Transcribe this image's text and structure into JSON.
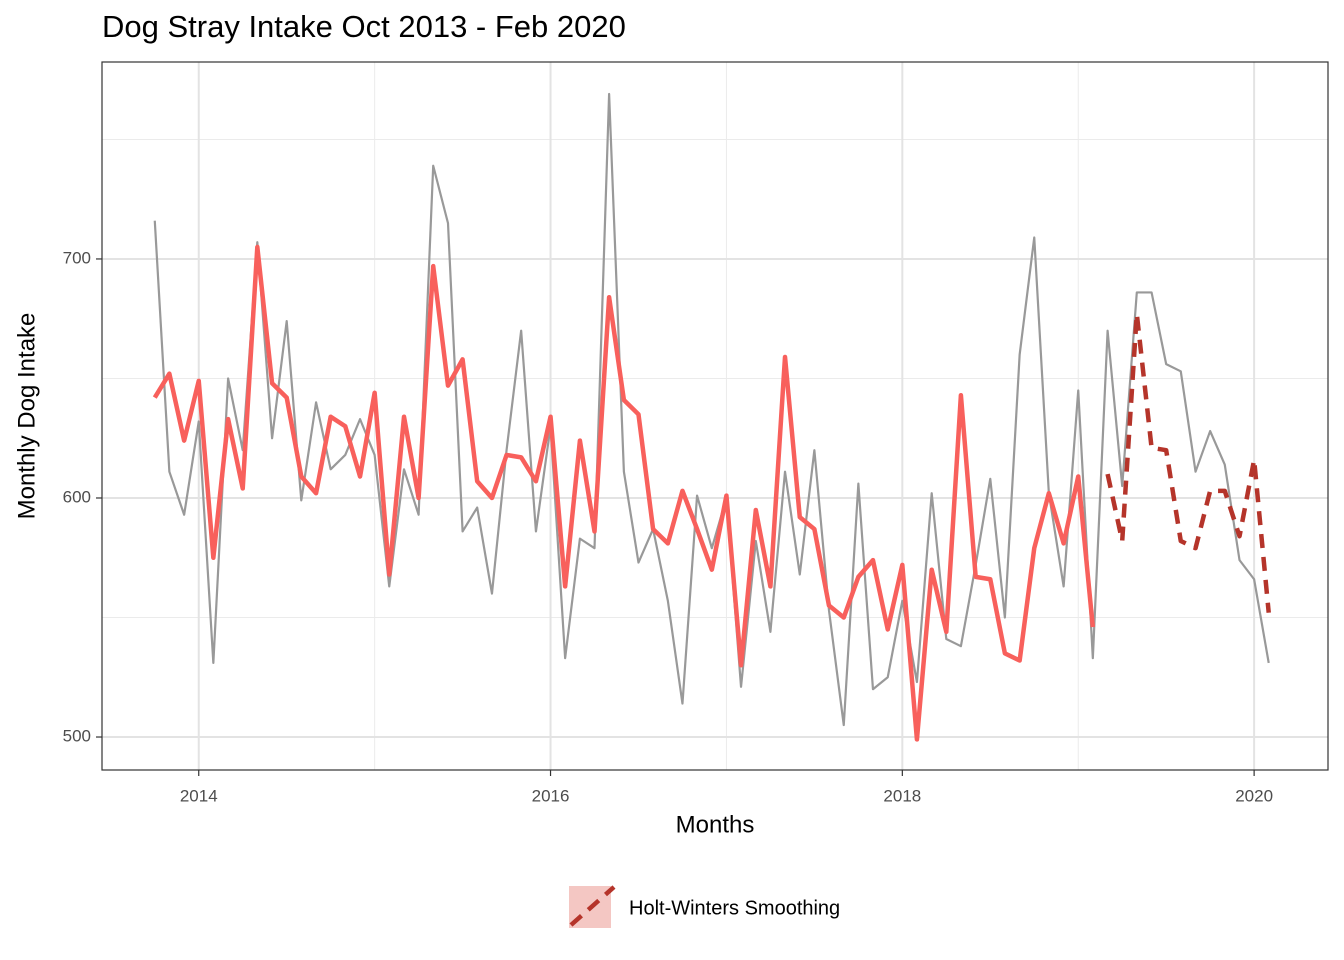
{
  "chart_data": {
    "type": "line",
    "title": "Dog Stray Intake Oct 2013 - Feb 2020",
    "x_label": "Months",
    "y_label": "Monthly Dog Intake",
    "x": [
      2013.75,
      2013.833,
      2013.917,
      2014,
      2014.083,
      2014.167,
      2014.25,
      2014.333,
      2014.417,
      2014.5,
      2014.583,
      2014.667,
      2014.75,
      2014.833,
      2014.917,
      2015,
      2015.083,
      2015.167,
      2015.25,
      2015.333,
      2015.417,
      2015.5,
      2015.583,
      2015.667,
      2015.75,
      2015.833,
      2015.917,
      2016,
      2016.083,
      2016.167,
      2016.25,
      2016.333,
      2016.417,
      2016.5,
      2016.583,
      2016.667,
      2016.75,
      2016.833,
      2016.917,
      2017,
      2017.083,
      2017.167,
      2017.25,
      2017.333,
      2017.417,
      2017.5,
      2017.583,
      2017.667,
      2017.75,
      2017.833,
      2017.917,
      2018,
      2018.083,
      2018.167,
      2018.25,
      2018.333,
      2018.417,
      2018.5,
      2018.583,
      2018.667,
      2018.75,
      2018.833,
      2018.917,
      2019,
      2019.083,
      2019.167,
      2019.25,
      2019.333,
      2019.417,
      2019.5,
      2019.583,
      2019.667,
      2019.75,
      2019.833,
      2019.917,
      2020,
      2020.083
    ],
    "series": [
      {
        "color": "#999999",
        "width": 2.2,
        "dash": "none",
        "values": [
          716,
          611,
          593,
          632,
          531,
          650,
          620,
          707,
          625,
          674,
          599,
          640,
          612,
          618,
          633,
          618,
          563,
          612,
          593,
          739,
          715,
          586,
          596,
          560,
          620,
          670,
          586,
          630,
          533,
          583,
          579,
          769,
          611,
          573,
          587,
          557,
          514,
          601,
          579,
          600,
          521,
          582,
          544,
          611,
          568,
          620,
          553,
          505,
          606,
          520,
          525,
          557,
          523,
          602,
          541,
          538,
          572,
          608,
          550,
          660,
          709,
          602,
          563,
          645,
          533,
          670,
          605,
          686,
          686,
          656,
          653,
          611,
          628,
          614,
          574,
          566,
          531
        ]
      },
      {
        "color": "#f8605c",
        "width": 4.5,
        "dash": "none",
        "values": [
          642,
          652,
          624,
          649,
          575,
          633,
          604,
          705,
          648,
          642,
          609,
          602,
          634,
          630,
          609,
          644,
          568,
          634,
          600,
          697,
          647,
          658,
          607,
          600,
          618,
          617,
          607,
          634,
          563,
          624,
          586,
          684,
          641,
          635,
          587,
          581,
          603,
          587,
          570,
          601,
          530,
          595,
          563,
          659,
          592,
          587,
          555,
          550,
          567,
          574,
          545,
          572,
          499,
          570,
          544,
          643,
          567,
          566,
          535,
          532,
          579,
          602,
          581,
          609,
          546,
          null,
          null,
          null,
          null,
          null,
          null,
          null,
          null,
          null,
          null,
          null,
          null
        ]
      },
      {
        "name": "Holt-Winters Smoothing",
        "color": "#b5342a",
        "width": 4.5,
        "dash": "14 9",
        "values": [
          null,
          null,
          null,
          null,
          null,
          null,
          null,
          null,
          null,
          null,
          null,
          null,
          null,
          null,
          null,
          null,
          null,
          null,
          null,
          null,
          null,
          null,
          null,
          null,
          null,
          null,
          null,
          null,
          null,
          null,
          null,
          null,
          null,
          null,
          null,
          null,
          null,
          null,
          null,
          null,
          null,
          null,
          null,
          null,
          null,
          null,
          null,
          null,
          null,
          null,
          null,
          null,
          null,
          null,
          null,
          null,
          null,
          null,
          null,
          null,
          null,
          null,
          null,
          null,
          null,
          610,
          582,
          677,
          621,
          620,
          582,
          579,
          603,
          603,
          584,
          616,
          552
        ]
      }
    ],
    "xlim": [
      2013.45,
      2020.42
    ],
    "xticks": [
      2014,
      2016,
      2018,
      2020
    ],
    "x_minor_grid": [
      2015,
      2017,
      2019
    ],
    "ylim": [
      486.2,
      782.4
    ],
    "yticks": [
      500,
      600,
      700
    ],
    "y_minor_grid": [
      550,
      650,
      750
    ],
    "grid": true,
    "legend_position": "bottom"
  }
}
